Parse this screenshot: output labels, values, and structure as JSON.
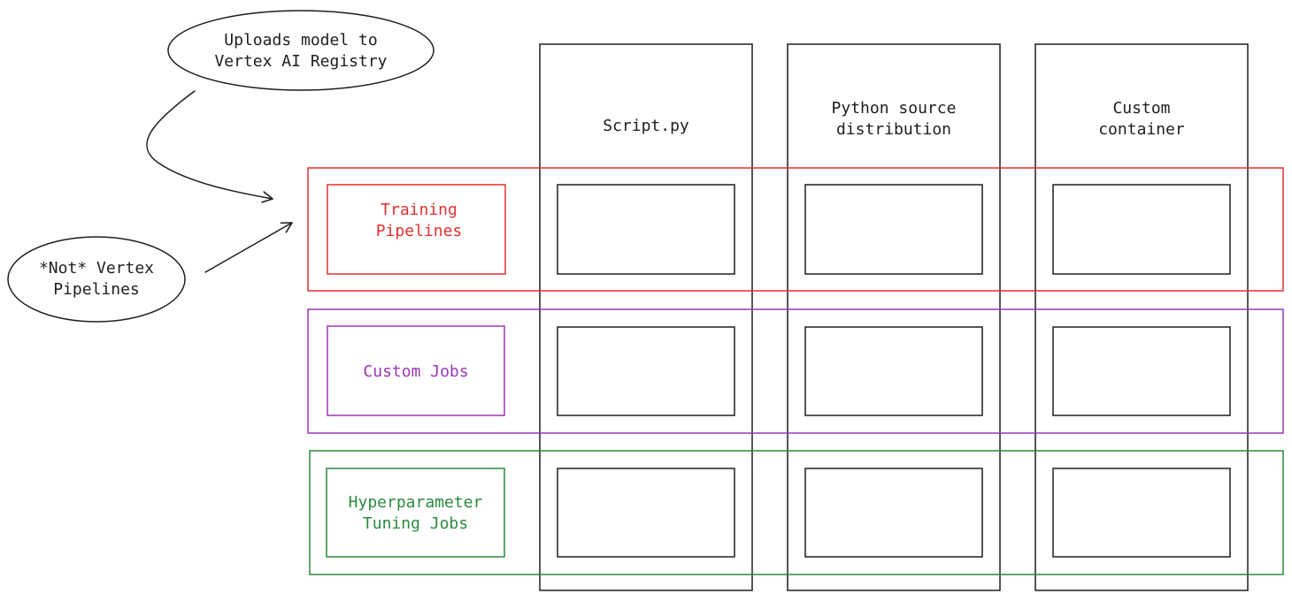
{
  "colors": {
    "ink": "#1e1e1e",
    "training": "#e03131",
    "custom": "#9c36b5",
    "hyper": "#2b8a3e"
  },
  "columns": [
    {
      "label": "Script.py"
    },
    {
      "label": "Python source\ndistribution"
    },
    {
      "label": "Custom\ncontainer"
    }
  ],
  "rows": [
    {
      "label": "Training\nPipelines"
    },
    {
      "label": "Custom Jobs"
    },
    {
      "label": "Hyperparameter\nTuning Jobs"
    }
  ],
  "notes": {
    "registry": "Uploads model to\nVertex AI Registry",
    "not_vertex": "*Not* Vertex\nPipelines"
  }
}
